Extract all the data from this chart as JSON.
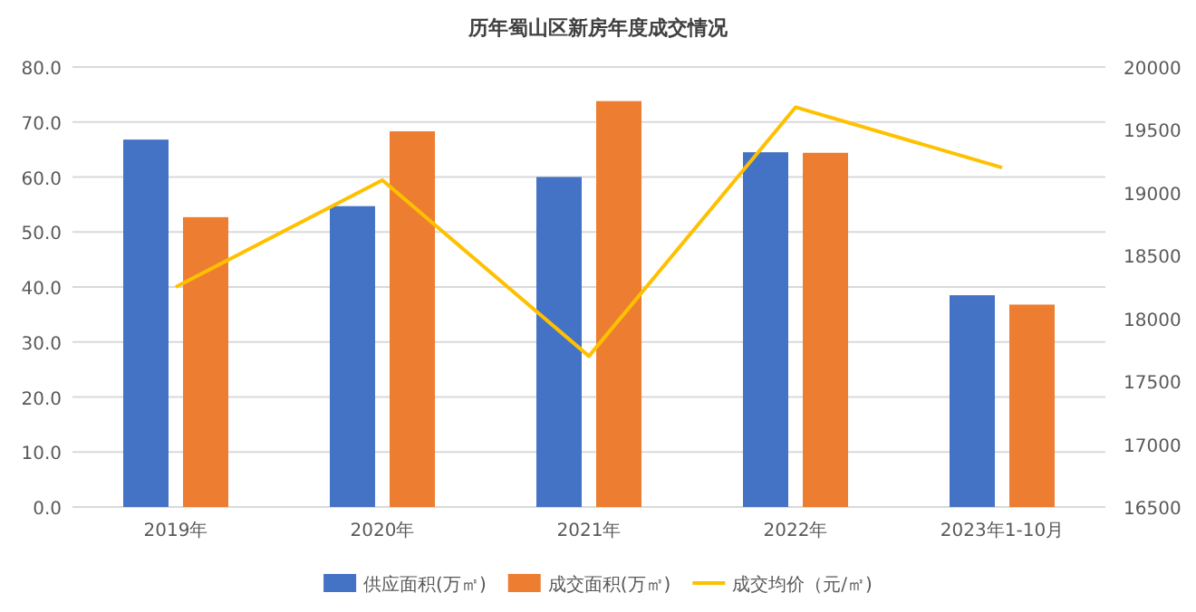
{
  "chart_data": {
    "type": "bar",
    "title": "历年蜀山区新房年度成交情况",
    "categories": [
      "2019年",
      "2020年",
      "2021年",
      "2022年",
      "2023年1-10月"
    ],
    "series": [
      {
        "name": "供应面积(万㎡)",
        "color": "#4472c4",
        "values": [
          66.8,
          54.7,
          60.0,
          64.5,
          38.5
        ]
      },
      {
        "name": "成交面积(万㎡)",
        "color": "#ed7d31",
        "values": [
          52.7,
          68.3,
          73.8,
          64.4,
          36.8
        ]
      },
      {
        "name": "成交均价（元/㎡)",
        "type": "line",
        "axis": "y2",
        "color": "#ffc000",
        "values": [
          18250,
          19100,
          17700,
          19680,
          19200
        ]
      }
    ],
    "ylim": [
      0,
      80
    ],
    "yticks": [
      {
        "value": 0,
        "label": "0.0"
      },
      {
        "value": 10,
        "label": "10.0"
      },
      {
        "value": 20,
        "label": "20.0"
      },
      {
        "value": 30,
        "label": "30.0"
      },
      {
        "value": 40,
        "label": "40.0"
      },
      {
        "value": 50,
        "label": "50.0"
      },
      {
        "value": 60,
        "label": "60.0"
      },
      {
        "value": 70,
        "label": "70.0"
      },
      {
        "value": 80,
        "label": "80.0"
      }
    ],
    "y2lim": [
      16500,
      20000
    ],
    "y2ticks": [
      16500,
      17000,
      17500,
      18000,
      18500,
      19000,
      19500,
      20000
    ],
    "grid": "y",
    "legend": "bottom",
    "marker": "none"
  }
}
